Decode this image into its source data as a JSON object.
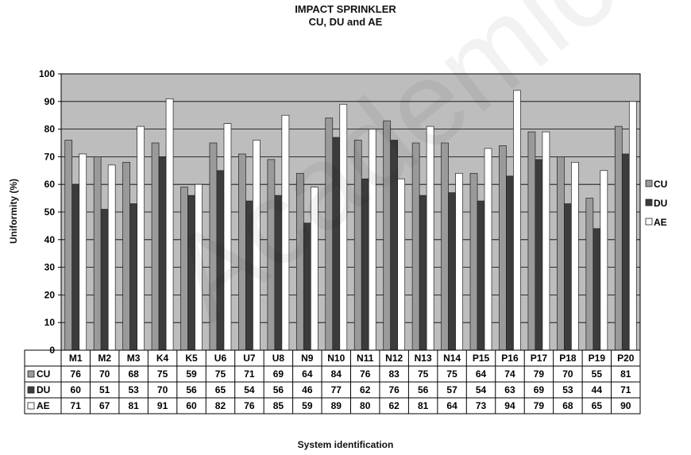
{
  "chart_data": {
    "type": "bar",
    "title": "IMPACT SPRINKLER",
    "subtitle": "CU, DU and AE",
    "xlabel": "System identification",
    "ylabel": "Uniformity (%)",
    "ylim": [
      0,
      100
    ],
    "yticks": [
      0,
      10,
      20,
      30,
      40,
      50,
      60,
      70,
      80,
      90,
      100
    ],
    "grid": true,
    "legend_position": "right",
    "categories": [
      "M1",
      "M2",
      "M3",
      "K4",
      "K5",
      "U6",
      "U7",
      "U8",
      "N9",
      "N10",
      "N11",
      "N12",
      "N13",
      "N14",
      "P15",
      "P16",
      "P17",
      "P18",
      "P19",
      "P20"
    ],
    "series": [
      {
        "name": "CU",
        "color": "#9a9a9a",
        "values": [
          76,
          70,
          68,
          75,
          59,
          75,
          71,
          69,
          64,
          84,
          76,
          83,
          75,
          75,
          64,
          74,
          79,
          70,
          55,
          81
        ],
        "table_values": [
          "76",
          "70",
          "68",
          "75",
          "59",
          "75",
          "71",
          "69",
          "64",
          "84",
          "76",
          "83",
          "75",
          "75",
          "64",
          "74",
          "79",
          "70",
          "55",
          "81"
        ]
      },
      {
        "name": "DU",
        "color": "#3c3c3c",
        "values": [
          60,
          51,
          53,
          70,
          56,
          65,
          54,
          56,
          46,
          77,
          62,
          76,
          56,
          57,
          54,
          63,
          69,
          53,
          44,
          71
        ],
        "table_values": [
          "60",
          "51",
          "53",
          "70",
          "56",
          "65",
          "54",
          "56",
          "46",
          "77",
          "62",
          "76",
          "56",
          "57",
          "54",
          "63",
          "69",
          "53",
          "44",
          "71"
        ]
      },
      {
        "name": "AE",
        "color": "#ffffff",
        "values": [
          71,
          67,
          81,
          91,
          60,
          82,
          76,
          85,
          59,
          89,
          80,
          62,
          81,
          64,
          73,
          94,
          79,
          68,
          65,
          90
        ],
        "table_values": [
          "71",
          "67",
          "81",
          "91",
          "60",
          "82",
          "76",
          "85",
          "59",
          "89",
          "80",
          "62",
          "81",
          "64",
          "73",
          "94",
          "79",
          "68",
          "65",
          "90"
        ]
      }
    ],
    "plot_background": "#bdbdbd",
    "watermark": "Academic Press Copy"
  }
}
